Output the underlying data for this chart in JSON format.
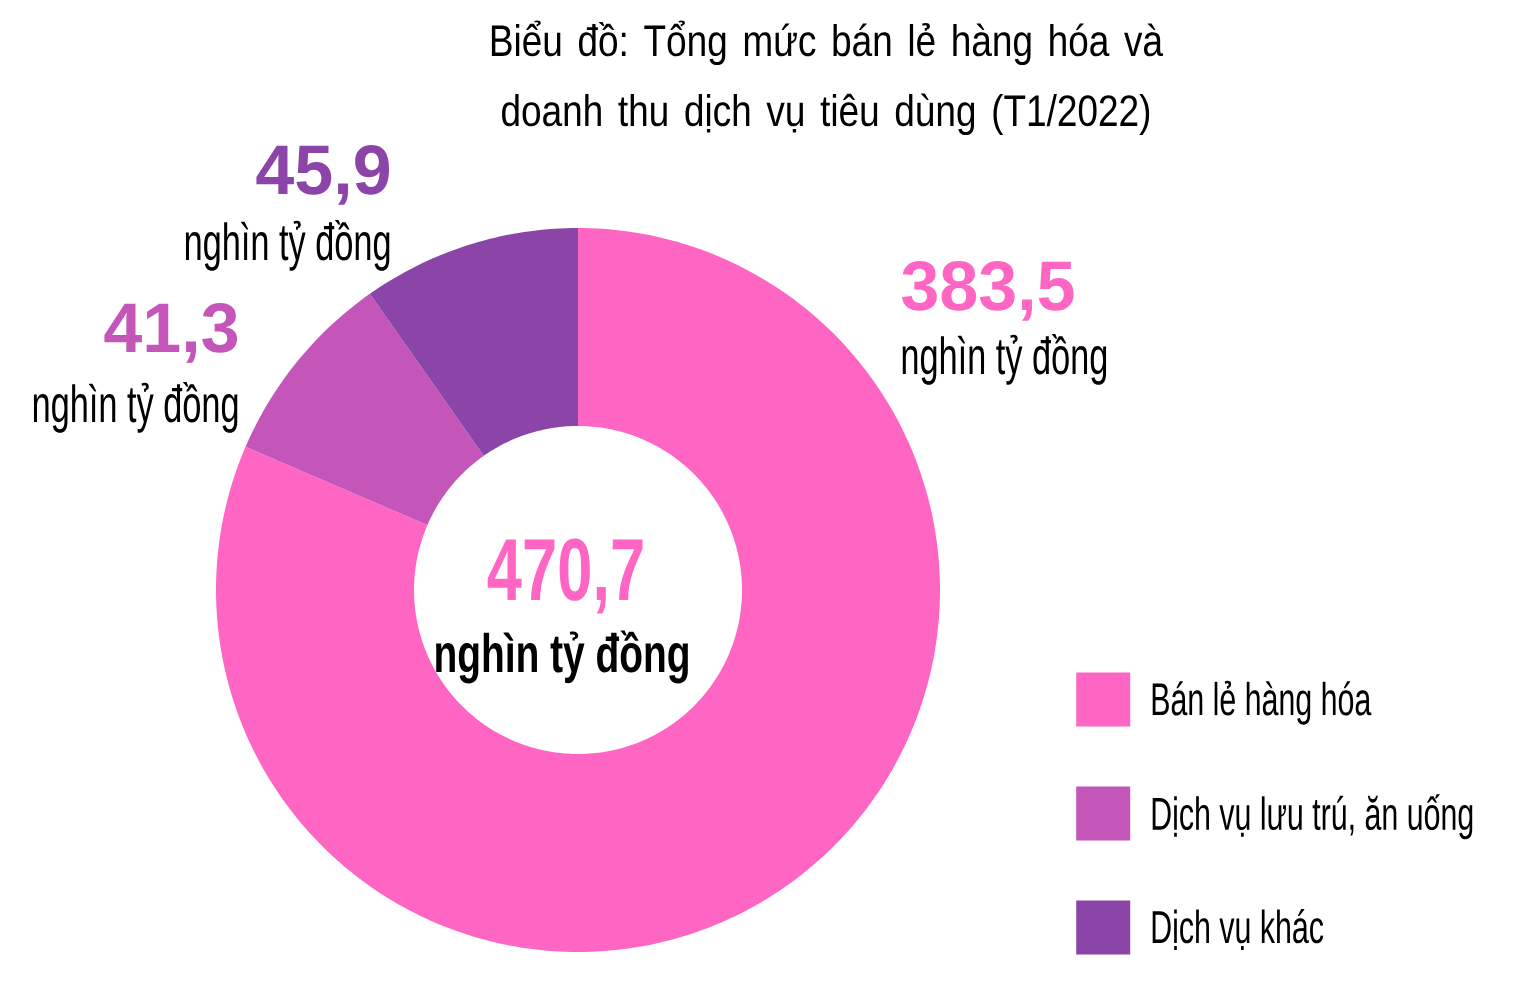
{
  "chart_data": {
    "type": "donut",
    "title": "Biểu đồ: Tổng mức bán lẻ hàng hóa và doanh thu dịch vụ tiêu dùng (T1/2022)",
    "categories": [
      "Bán lẻ hàng hóa",
      "Dịch vụ lưu trú, ăn uống",
      "Dịch vụ khác"
    ],
    "values": [
      383.5,
      41.3,
      45.9
    ],
    "colors": [
      "#ff66c4",
      "#c455b9",
      "#8b44a8"
    ],
    "value_labels": [
      "383,5",
      "41,3",
      "45,9"
    ],
    "annotations": [
      "470,7",
      "nghìn tỷ đồng",
      "nghìn tỷ đồng",
      "nghìn tỷ đồng",
      "nghìn tỷ đồng"
    ],
    "legend": "bottom right"
  }
}
